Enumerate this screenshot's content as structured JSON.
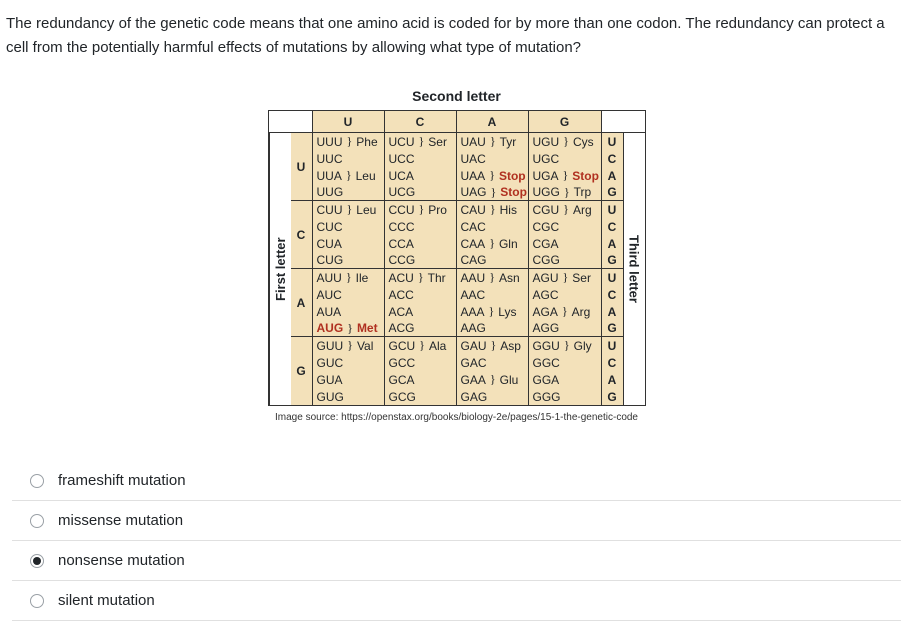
{
  "question": "The redundancy of the genetic code means that one amino acid is coded for by more than one codon.  The redundancy can protect a cell from the potentially harmful effects of mutations by allowing what type of mutation?",
  "chart": {
    "top_axis_title": "Second letter",
    "left_axis_title": "First letter",
    "right_axis_title": "Third letter",
    "col_headers": [
      "U",
      "C",
      "A",
      "G"
    ],
    "row_blocks": [
      "U",
      "C",
      "A",
      "G"
    ],
    "third_letters": [
      "U",
      "C",
      "A",
      "G"
    ],
    "cells": [
      [
        [
          "UUU",
          "Phe",
          "b"
        ],
        [
          "UCU",
          "Ser",
          "b"
        ],
        [
          "UAU",
          "Tyr",
          "b"
        ],
        [
          "UGU",
          "Cys",
          "b"
        ],
        [
          "UUC",
          "Phe",
          ""
        ],
        [
          "UCC",
          "Ser",
          ""
        ],
        [
          "UAC",
          "Tyr",
          ""
        ],
        [
          "UGC",
          "Cys",
          ""
        ],
        [
          "UUA",
          "Leu",
          "b"
        ],
        [
          "UCA",
          "Ser",
          ""
        ],
        [
          "UAA",
          "Stop",
          "s"
        ],
        [
          "UGA",
          "Stop",
          "s"
        ],
        [
          "UUG",
          "Leu",
          ""
        ],
        [
          "UCG",
          "Ser",
          ""
        ],
        [
          "UAG",
          "Stop",
          "s"
        ],
        [
          "UGG",
          "Trp",
          ""
        ]
      ],
      [
        [
          "CUU",
          "Leu",
          "b"
        ],
        [
          "CCU",
          "Pro",
          "b"
        ],
        [
          "CAU",
          "His",
          "b"
        ],
        [
          "CGU",
          "Arg",
          "b"
        ],
        [
          "CUC",
          "Leu",
          ""
        ],
        [
          "CCC",
          "Pro",
          ""
        ],
        [
          "CAC",
          "His",
          ""
        ],
        [
          "CGC",
          "Arg",
          ""
        ],
        [
          "CUA",
          "Leu",
          ""
        ],
        [
          "CCA",
          "Pro",
          ""
        ],
        [
          "CAA",
          "Gln",
          "b"
        ],
        [
          "CGA",
          "Arg",
          ""
        ],
        [
          "CUG",
          "Leu",
          ""
        ],
        [
          "CCG",
          "Pro",
          ""
        ],
        [
          "CAG",
          "Gln",
          ""
        ],
        [
          "CGG",
          "Arg",
          ""
        ]
      ],
      [
        [
          "AUU",
          "Ile",
          "b"
        ],
        [
          "ACU",
          "Thr",
          "b"
        ],
        [
          "AAU",
          "Asn",
          "b"
        ],
        [
          "AGU",
          "Ser",
          "b"
        ],
        [
          "AUC",
          "Ile",
          ""
        ],
        [
          "ACC",
          "Thr",
          ""
        ],
        [
          "AAC",
          "Asn",
          ""
        ],
        [
          "AGC",
          "Ser",
          ""
        ],
        [
          "AUA",
          "Ile",
          ""
        ],
        [
          "ACA",
          "Thr",
          ""
        ],
        [
          "AAA",
          "Lys",
          "b"
        ],
        [
          "AGA",
          "Arg",
          "b"
        ],
        [
          "AUG",
          "Met",
          "h"
        ],
        [
          "ACG",
          "Thr",
          ""
        ],
        [
          "AAG",
          "Lys",
          ""
        ],
        [
          "AGG",
          "Arg",
          ""
        ]
      ],
      [
        [
          "GUU",
          "Val",
          "b"
        ],
        [
          "GCU",
          "Ala",
          "b"
        ],
        [
          "GAU",
          "Asp",
          "b"
        ],
        [
          "GGU",
          "Gly",
          "b"
        ],
        [
          "GUC",
          "Val",
          ""
        ],
        [
          "GCC",
          "Ala",
          ""
        ],
        [
          "GAC",
          "Asp",
          ""
        ],
        [
          "GGC",
          "Gly",
          ""
        ],
        [
          "GUA",
          "Val",
          ""
        ],
        [
          "GCA",
          "Ala",
          ""
        ],
        [
          "GAA",
          "Glu",
          "b"
        ],
        [
          "GGA",
          "Gly",
          ""
        ],
        [
          "GUG",
          "Val",
          ""
        ],
        [
          "GCG",
          "Ala",
          ""
        ],
        [
          "GAG",
          "Glu",
          ""
        ],
        [
          "GGG",
          "Gly",
          ""
        ]
      ]
    ],
    "background_color": "#f3e1ba",
    "border_color": "#333333",
    "highlight_color": "#b03020"
  },
  "source_text": "Image source: https://openstax.org/books/biology-2e/pages/15-1-the-genetic-code",
  "options": [
    {
      "label": "frameshift mutation",
      "selected": false
    },
    {
      "label": "missense mutation",
      "selected": false
    },
    {
      "label": "nonsense mutation",
      "selected": true
    },
    {
      "label": "silent mutation",
      "selected": false
    }
  ]
}
